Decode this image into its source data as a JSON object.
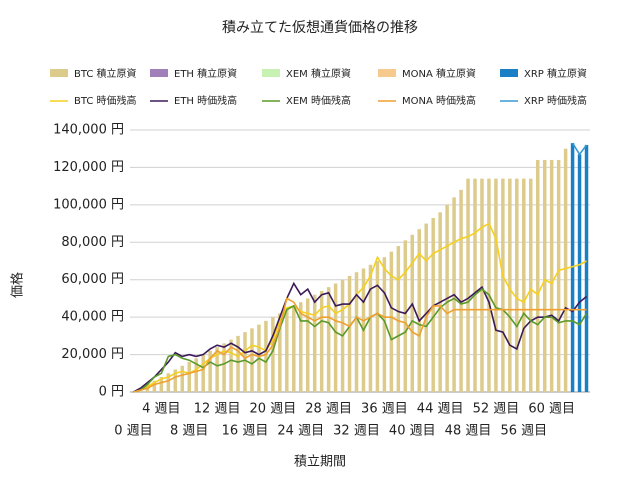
{
  "chart_data": {
    "type": "bar-line",
    "title": "積み立てた仮想通貨価格の推移",
    "x_label": "積立期間",
    "y_label": "価格",
    "legend": "top",
    "grid": true,
    "categories": [
      "0 週目",
      null,
      null,
      null,
      "4 週目",
      null,
      null,
      null,
      "8 週目",
      null,
      null,
      null,
      "12 週目",
      null,
      null,
      null,
      "16 週目",
      null,
      null,
      null,
      "20 週目",
      null,
      null,
      null,
      "24 週目",
      null,
      null,
      null,
      "28 週目",
      null,
      null,
      null,
      "32 週目",
      null,
      null,
      null,
      "36 週目",
      null,
      null,
      null,
      "40 週目",
      null,
      null,
      null,
      "44 週目",
      null,
      null,
      null,
      "48 週目",
      null,
      null,
      null,
      "52 週目",
      null,
      null,
      null,
      "56 週目",
      null,
      null,
      null,
      "60 週目",
      null,
      null,
      null,
      null,
      null
    ],
    "ylim": [
      0,
      140000
    ],
    "yticks": [
      {
        "value": 0,
        "label": "0 円"
      },
      {
        "value": 20000,
        "label": "20,000 円"
      },
      {
        "value": 40000,
        "label": "40,000 円"
      },
      {
        "value": 60000,
        "label": "60,000 円"
      },
      {
        "value": 80000,
        "label": "80,000 円"
      },
      {
        "value": 100000,
        "label": "100,000 円"
      },
      {
        "value": 120000,
        "label": "120,000 円"
      },
      {
        "value": 140000,
        "label": "140,000 円"
      }
    ],
    "series": [
      {
        "name": "BTC  積立原資",
        "kind": "bar",
        "color": "#dccb8a",
        "values": [
          0,
          2000,
          4000,
          6000,
          8000,
          10000,
          12000,
          14000,
          16000,
          18000,
          20000,
          22000,
          24000,
          26000,
          28000,
          30000,
          32000,
          34000,
          36000,
          38000,
          40000,
          42000,
          44000,
          46000,
          48000,
          50000,
          52000,
          54000,
          56000,
          58000,
          60000,
          62000,
          64000,
          66000,
          68000,
          70000,
          72000,
          75000,
          78000,
          81000,
          84000,
          87000,
          90000,
          93000,
          96000,
          100000,
          104000,
          108000,
          114000,
          114000,
          114000,
          114000,
          114000,
          114000,
          114000,
          114000,
          114000,
          114000,
          124000,
          124000,
          124000,
          124000,
          130000,
          null,
          null,
          null
        ]
      },
      {
        "name": "ETH  積立原資",
        "kind": "bar",
        "color": "#9f80b8",
        "values": [
          null,
          null,
          null,
          null,
          null,
          null,
          null,
          null,
          null,
          null,
          null,
          null,
          null,
          null,
          null,
          null,
          null,
          null,
          null,
          null,
          null,
          null,
          null,
          null,
          null,
          null,
          null,
          null,
          null,
          null,
          null,
          null,
          null,
          null,
          null,
          null,
          null,
          null,
          null,
          null,
          null,
          null,
          null,
          null,
          null,
          null,
          null,
          null,
          null,
          null,
          null,
          null,
          null,
          null,
          null,
          null,
          null,
          null,
          null,
          null,
          null,
          null,
          null,
          null,
          null,
          null
        ]
      },
      {
        "name": "XEM  積立原資",
        "kind": "bar",
        "color": "#c8f2b4",
        "values": [
          null,
          null,
          null,
          null,
          null,
          null,
          null,
          null,
          null,
          null,
          null,
          null,
          null,
          null,
          null,
          null,
          null,
          null,
          null,
          null,
          null,
          null,
          null,
          null,
          null,
          null,
          null,
          null,
          null,
          null,
          null,
          null,
          null,
          null,
          null,
          null,
          null,
          null,
          null,
          null,
          null,
          null,
          null,
          null,
          null,
          null,
          null,
          null,
          null,
          null,
          null,
          null,
          null,
          null,
          null,
          null,
          null,
          null,
          null,
          null,
          null,
          null,
          null,
          null,
          null,
          null
        ]
      },
      {
        "name": "MONA  積立原資",
        "kind": "bar",
        "color": "#f6c98e",
        "values": [
          null,
          null,
          null,
          null,
          null,
          null,
          null,
          null,
          null,
          null,
          null,
          null,
          null,
          null,
          null,
          null,
          null,
          null,
          null,
          null,
          null,
          null,
          null,
          null,
          null,
          null,
          null,
          null,
          null,
          null,
          null,
          null,
          null,
          null,
          null,
          null,
          null,
          null,
          null,
          null,
          null,
          null,
          null,
          null,
          null,
          null,
          null,
          null,
          null,
          null,
          null,
          null,
          null,
          null,
          null,
          null,
          null,
          null,
          null,
          null,
          null,
          null,
          null,
          null,
          null,
          null
        ]
      },
      {
        "name": "XRP  積立原資",
        "kind": "bar",
        "color": "#1a7fc4",
        "values": [
          null,
          null,
          null,
          null,
          null,
          null,
          null,
          null,
          null,
          null,
          null,
          null,
          null,
          null,
          null,
          null,
          null,
          null,
          null,
          null,
          null,
          null,
          null,
          null,
          null,
          null,
          null,
          null,
          null,
          null,
          null,
          null,
          null,
          null,
          null,
          null,
          null,
          null,
          null,
          null,
          null,
          null,
          null,
          null,
          null,
          null,
          null,
          null,
          null,
          null,
          null,
          null,
          null,
          null,
          null,
          null,
          null,
          null,
          null,
          null,
          null,
          null,
          null,
          133000,
          127000,
          132000
        ]
      },
      {
        "name": "BTC  時価残高",
        "kind": "line",
        "color": "#f5d020",
        "values": [
          0,
          1000,
          3000,
          5000,
          7000,
          8000,
          10000,
          11000,
          10000,
          12000,
          15000,
          18000,
          20000,
          22000,
          21000,
          19000,
          22000,
          25000,
          24000,
          22000,
          28000,
          38000,
          45000,
          46000,
          43000,
          42000,
          41000,
          45000,
          46000,
          42000,
          44000,
          47000,
          52000,
          56000,
          62000,
          72000,
          66000,
          62000,
          60000,
          64000,
          69000,
          74000,
          70000,
          74000,
          76000,
          78000,
          80000,
          82000,
          83000,
          85000,
          88000,
          90000,
          82000,
          62000,
          55000,
          50000,
          48000,
          55000,
          52000,
          60000,
          58000,
          65000,
          66000,
          67000,
          68000,
          70000
        ]
      },
      {
        "name": "ETH  時価残高",
        "kind": "line",
        "color": "#3b1a5a",
        "values": [
          0,
          2000,
          5000,
          8000,
          12000,
          16000,
          21000,
          19000,
          20000,
          19000,
          20000,
          23000,
          25000,
          24000,
          26000,
          24000,
          21000,
          22000,
          20000,
          22000,
          30000,
          40000,
          50000,
          58000,
          52000,
          55000,
          48000,
          52000,
          53000,
          46000,
          47000,
          47000,
          52000,
          48000,
          55000,
          57000,
          53000,
          45000,
          43000,
          42000,
          47000,
          38000,
          42000,
          46000,
          48000,
          50000,
          52000,
          48000,
          50000,
          53000,
          56000,
          48000,
          33000,
          32000,
          25000,
          23000,
          34000,
          38000,
          40000,
          40000,
          41000,
          38000,
          45000,
          43000,
          48000,
          51000
        ]
      },
      {
        "name": "XEM  時価残高",
        "kind": "line",
        "color": "#5a9a2a",
        "values": [
          0,
          1000,
          4000,
          8000,
          10000,
          19000,
          20000,
          18000,
          17000,
          15000,
          13000,
          16000,
          14000,
          15000,
          17000,
          16000,
          17000,
          15000,
          18000,
          16000,
          22000,
          34000,
          44000,
          46000,
          38000,
          38000,
          35000,
          38000,
          37000,
          32000,
          30000,
          35000,
          40000,
          33000,
          40000,
          42000,
          38000,
          28000,
          30000,
          32000,
          38000,
          36000,
          35000,
          40000,
          45000,
          48000,
          50000,
          47000,
          48000,
          52000,
          55000,
          52000,
          45000,
          44000,
          40000,
          35000,
          42000,
          38000,
          36000,
          40000,
          40000,
          37000,
          38000,
          38000,
          36000,
          42000
        ]
      },
      {
        "name": "MONA  時価残高",
        "kind": "line",
        "color": "#f0a030",
        "values": [
          0,
          1000,
          2000,
          4000,
          5000,
          6000,
          8000,
          9000,
          10000,
          11000,
          12000,
          18000,
          22000,
          20000,
          24000,
          22000,
          18000,
          20000,
          19000,
          20000,
          25000,
          35000,
          50000,
          48000,
          42000,
          40000,
          38000,
          40000,
          40000,
          38000,
          37000,
          35000,
          40000,
          38000,
          40000,
          42000,
          40000,
          40000,
          38000,
          37000,
          32000,
          30000,
          40000,
          46000,
          46000,
          42000,
          44000,
          44000,
          44000,
          44000,
          44000,
          44000,
          44000,
          44000,
          44000,
          44000,
          44000,
          44000,
          44000,
          44000,
          44000,
          44000,
          44000,
          44000,
          44000,
          44000
        ]
      },
      {
        "name": "XRP  時価残高",
        "kind": "line",
        "color": "#3a9ad0",
        "values": [
          null,
          null,
          null,
          null,
          null,
          null,
          null,
          null,
          null,
          null,
          null,
          null,
          null,
          null,
          null,
          null,
          null,
          null,
          null,
          null,
          null,
          null,
          null,
          null,
          null,
          null,
          null,
          null,
          null,
          null,
          null,
          null,
          null,
          null,
          null,
          null,
          null,
          null,
          null,
          null,
          null,
          null,
          null,
          null,
          null,
          null,
          null,
          null,
          null,
          null,
          null,
          null,
          null,
          null,
          null,
          null,
          null,
          null,
          null,
          null,
          null,
          null,
          null,
          133000,
          127000,
          132000
        ]
      }
    ]
  }
}
